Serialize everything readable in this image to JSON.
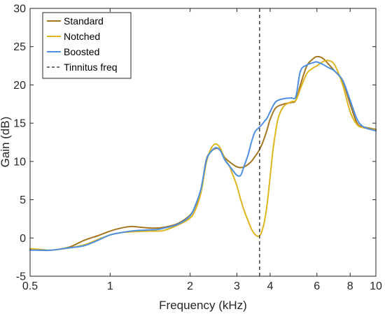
{
  "chart_data": {
    "type": "line",
    "title": "",
    "xlabel": "Frequency (kHz)",
    "ylabel": "Gain (dB)",
    "x_scale": "log",
    "xlim": [
      0.5,
      10
    ],
    "ylim": [
      -5,
      30
    ],
    "x_ticks": [
      0.5,
      1,
      2,
      3,
      4,
      6,
      8,
      10
    ],
    "x_tick_labels": [
      "0.5",
      "1",
      "2",
      "3",
      "4",
      "6",
      "8",
      "10"
    ],
    "y_ticks": [
      -5,
      0,
      5,
      10,
      15,
      20,
      25,
      30
    ],
    "y_tick_labels": [
      "-5",
      "0",
      "5",
      "10",
      "15",
      "20",
      "25",
      "30"
    ],
    "grid": false,
    "legend_position": "top-left",
    "series": [
      {
        "name": "Standard",
        "color": "#A6751F",
        "x": [
          0.5,
          0.55,
          0.6,
          0.7,
          0.8,
          0.9,
          1.0,
          1.1,
          1.2,
          1.3,
          1.4,
          1.5,
          1.6,
          1.8,
          2.0,
          2.1,
          2.2,
          2.3,
          2.4,
          2.5,
          2.6,
          2.7,
          2.8,
          2.9,
          3.0,
          3.1,
          3.2,
          3.3,
          3.4,
          3.5,
          3.6,
          3.7,
          3.8,
          3.9,
          4.0,
          4.2,
          4.5,
          4.8,
          5.0,
          5.2,
          5.5,
          5.8,
          6.0,
          6.3,
          6.6,
          7.0,
          7.5,
          8.0,
          8.5,
          9.0,
          10.0
        ],
        "y": [
          -1.5,
          -1.6,
          -1.6,
          -1.2,
          -0.3,
          0.3,
          0.9,
          1.3,
          1.5,
          1.4,
          1.3,
          1.3,
          1.4,
          1.9,
          3.0,
          4.3,
          6.3,
          10.2,
          11.3,
          11.7,
          11.5,
          10.5,
          10.0,
          9.6,
          9.3,
          9.2,
          9.3,
          9.6,
          10.0,
          10.6,
          11.2,
          12.0,
          13.0,
          14.2,
          15.5,
          17.0,
          17.5,
          17.7,
          18.0,
          20.0,
          22.5,
          23.4,
          23.7,
          23.5,
          22.8,
          21.8,
          20.5,
          17.5,
          15.0,
          14.5,
          14.2
        ]
      },
      {
        "name": "Notched",
        "color": "#DDB61F",
        "x": [
          0.5,
          0.55,
          0.6,
          0.7,
          0.8,
          0.9,
          1.0,
          1.1,
          1.2,
          1.3,
          1.4,
          1.5,
          1.6,
          1.8,
          2.0,
          2.1,
          2.2,
          2.3,
          2.4,
          2.5,
          2.6,
          2.7,
          2.8,
          2.9,
          3.0,
          3.1,
          3.2,
          3.3,
          3.4,
          3.5,
          3.6,
          3.65,
          3.7,
          3.8,
          3.9,
          4.0,
          4.1,
          4.2,
          4.3,
          4.5,
          4.8,
          5.0,
          5.2,
          5.5,
          5.8,
          6.0,
          6.3,
          6.6,
          7.0,
          7.5,
          8.0,
          8.5,
          9.0,
          10.0
        ],
        "y": [
          -1.4,
          -1.5,
          -1.6,
          -1.3,
          -0.9,
          -0.2,
          0.4,
          0.7,
          0.8,
          0.85,
          0.9,
          0.9,
          1.0,
          1.7,
          2.6,
          3.8,
          6.0,
          9.8,
          11.7,
          12.3,
          11.7,
          10.3,
          9.5,
          8.2,
          6.8,
          5.0,
          3.5,
          2.3,
          1.2,
          0.5,
          0.2,
          0.3,
          0.6,
          2.0,
          4.5,
          8.0,
          11.5,
          14.0,
          15.8,
          17.2,
          17.8,
          18.0,
          19.5,
          21.5,
          22.2,
          22.5,
          23.0,
          23.2,
          22.6,
          20.0,
          16.5,
          14.8,
          14.4,
          14.1
        ]
      },
      {
        "name": "Boosted",
        "color": "#4D90E2",
        "x": [
          0.5,
          0.55,
          0.6,
          0.7,
          0.8,
          0.9,
          1.0,
          1.1,
          1.2,
          1.3,
          1.4,
          1.5,
          1.6,
          1.8,
          2.0,
          2.1,
          2.2,
          2.3,
          2.4,
          2.5,
          2.6,
          2.7,
          2.8,
          2.9,
          3.0,
          3.1,
          3.2,
          3.3,
          3.4,
          3.5,
          3.6,
          3.7,
          3.8,
          3.9,
          4.0,
          4.2,
          4.5,
          4.8,
          5.0,
          5.2,
          5.5,
          5.8,
          6.0,
          6.3,
          6.6,
          7.0,
          7.5,
          8.0,
          8.5,
          9.0,
          10.0
        ],
        "y": [
          -1.6,
          -1.6,
          -1.6,
          -1.3,
          -1.0,
          -0.3,
          0.4,
          0.7,
          0.9,
          1.0,
          1.05,
          1.1,
          1.3,
          1.8,
          2.9,
          4.4,
          6.5,
          10.1,
          11.3,
          11.8,
          11.4,
          10.2,
          9.5,
          8.8,
          8.2,
          8.2,
          9.5,
          10.8,
          12.5,
          13.8,
          14.3,
          14.7,
          15.2,
          15.7,
          16.5,
          17.8,
          18.2,
          18.3,
          18.5,
          21.8,
          22.6,
          22.9,
          23.0,
          22.7,
          22.3,
          21.8,
          20.6,
          18.0,
          15.5,
          14.5,
          14.0
        ]
      }
    ],
    "reference_lines": [
      {
        "name": "Tinnitus freq",
        "orientation": "vertical",
        "x": 3.65,
        "color": "#404040",
        "style": "dashed"
      }
    ]
  }
}
